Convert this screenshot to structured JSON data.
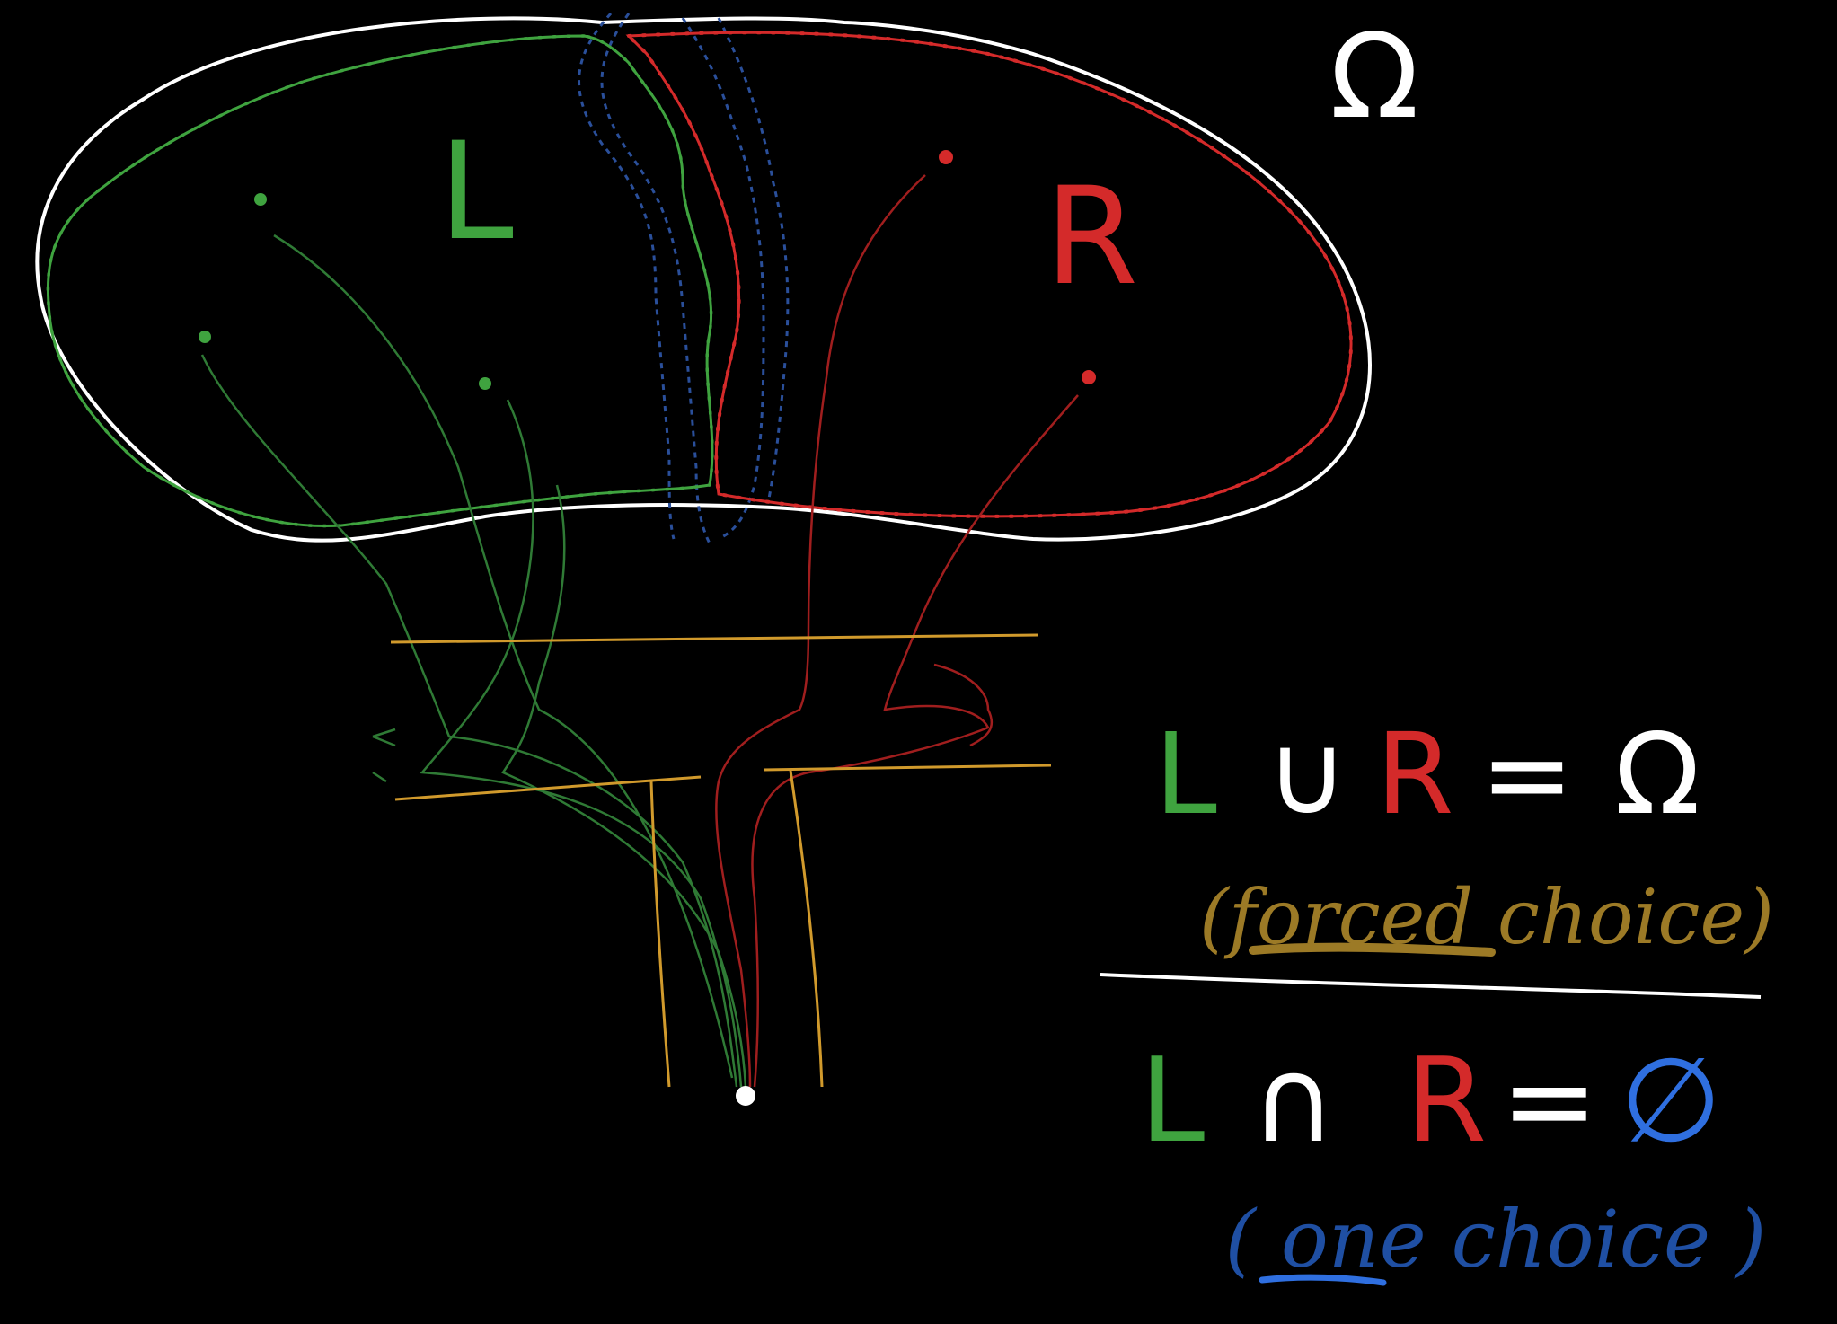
{
  "labels": {
    "omega": "Ω",
    "left_region": "L",
    "right_region": "R"
  },
  "equations": {
    "union": {
      "L": "L",
      "op": "∪",
      "R": "R",
      "eq": "=",
      "rhs": "Ω",
      "note": "(forced choice)",
      "note_underlined": "forced"
    },
    "intersection": {
      "L": "L",
      "op": "∩",
      "R": "R",
      "eq": "=",
      "rhs": "∅",
      "note": "( one choice )",
      "note_underlined": "one"
    }
  },
  "colors": {
    "background": "#000000",
    "omega_outline": "#ffffff",
    "left_region": "#3fa33f",
    "right_region": "#d42a2a",
    "overlap_boundary": "#2a4f9a",
    "paths_green": "#2f7a35",
    "paths_red": "#a01e1e",
    "junction": "#d19a2c",
    "forced_choice_text": "#9c7a26",
    "one_choice_text": "#1f4fa3",
    "empty_set": "#2f6fe0",
    "equation_white": "#ffffff"
  }
}
